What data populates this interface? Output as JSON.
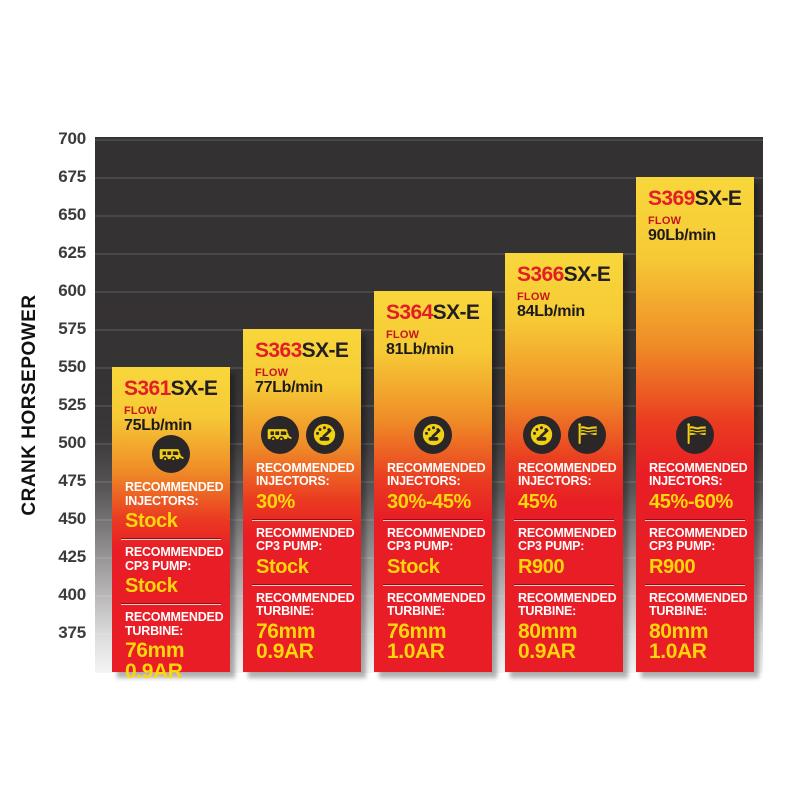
{
  "chart_data": {
    "type": "bar",
    "ylabel": "CRANK HORSEPOWER",
    "yticks": [
      700,
      675,
      650,
      625,
      600,
      575,
      550,
      525,
      500,
      475,
      450,
      425,
      400,
      375
    ],
    "ylim": [
      350,
      700
    ],
    "grid": true,
    "legend": "none",
    "colors": {
      "plot_background_top": "#343132",
      "plot_background_bottom": "#f5f4f4",
      "bar_top": "#f8d73b",
      "bar_bottom": "#e81d25",
      "model_prefix_red": "#e21e26",
      "model_suffix_dark": "#231f20",
      "value_yellow": "#ffd60b",
      "label_white": "#ffffff",
      "icon_circle_dark": "#2b2627",
      "icon_glyph_yellow": "#f2d013"
    },
    "section_labels": {
      "flow": "FLOW",
      "recommended": "RECOMMENDED",
      "injectors": "INJECTORS:",
      "cp3_pump": "CP3 PUMP:",
      "turbine": "TURBINE:"
    },
    "bars": [
      {
        "model_prefix": "S361",
        "model_suffix": "SX-E",
        "flow": "75Lb/min",
        "crank_hp": 550,
        "icons": [
          "rv-icon"
        ],
        "injectors": "Stock",
        "cp3_pump": "Stock",
        "turbine_line1": "76mm",
        "turbine_line2": "0.9AR"
      },
      {
        "model_prefix": "S363",
        "model_suffix": "SX-E",
        "flow": "77Lb/min",
        "crank_hp": 575,
        "icons": [
          "rv-icon",
          "gauge-icon"
        ],
        "injectors": "30%",
        "cp3_pump": "Stock",
        "turbine_line1": "76mm",
        "turbine_line2": "0.9AR"
      },
      {
        "model_prefix": "S364",
        "model_suffix": "SX-E",
        "flow": "81Lb/min",
        "crank_hp": 600,
        "icons": [
          "gauge-icon"
        ],
        "injectors": "30%-45%",
        "cp3_pump": "Stock",
        "turbine_line1": "76mm",
        "turbine_line2": "1.0AR"
      },
      {
        "model_prefix": "S366",
        "model_suffix": "SX-E",
        "flow": "84Lb/min",
        "crank_hp": 625,
        "icons": [
          "gauge-icon",
          "flag-icon"
        ],
        "injectors": "45%",
        "cp3_pump": "R900",
        "turbine_line1": "80mm",
        "turbine_line2": "0.9AR"
      },
      {
        "model_prefix": "S369",
        "model_suffix": "SX-E",
        "flow": "90Lb/min",
        "crank_hp": 675,
        "icons": [
          "flag-icon"
        ],
        "injectors": "45%-60%",
        "cp3_pump": "R900",
        "turbine_line1": "80mm",
        "turbine_line2": "1.0AR"
      }
    ]
  }
}
